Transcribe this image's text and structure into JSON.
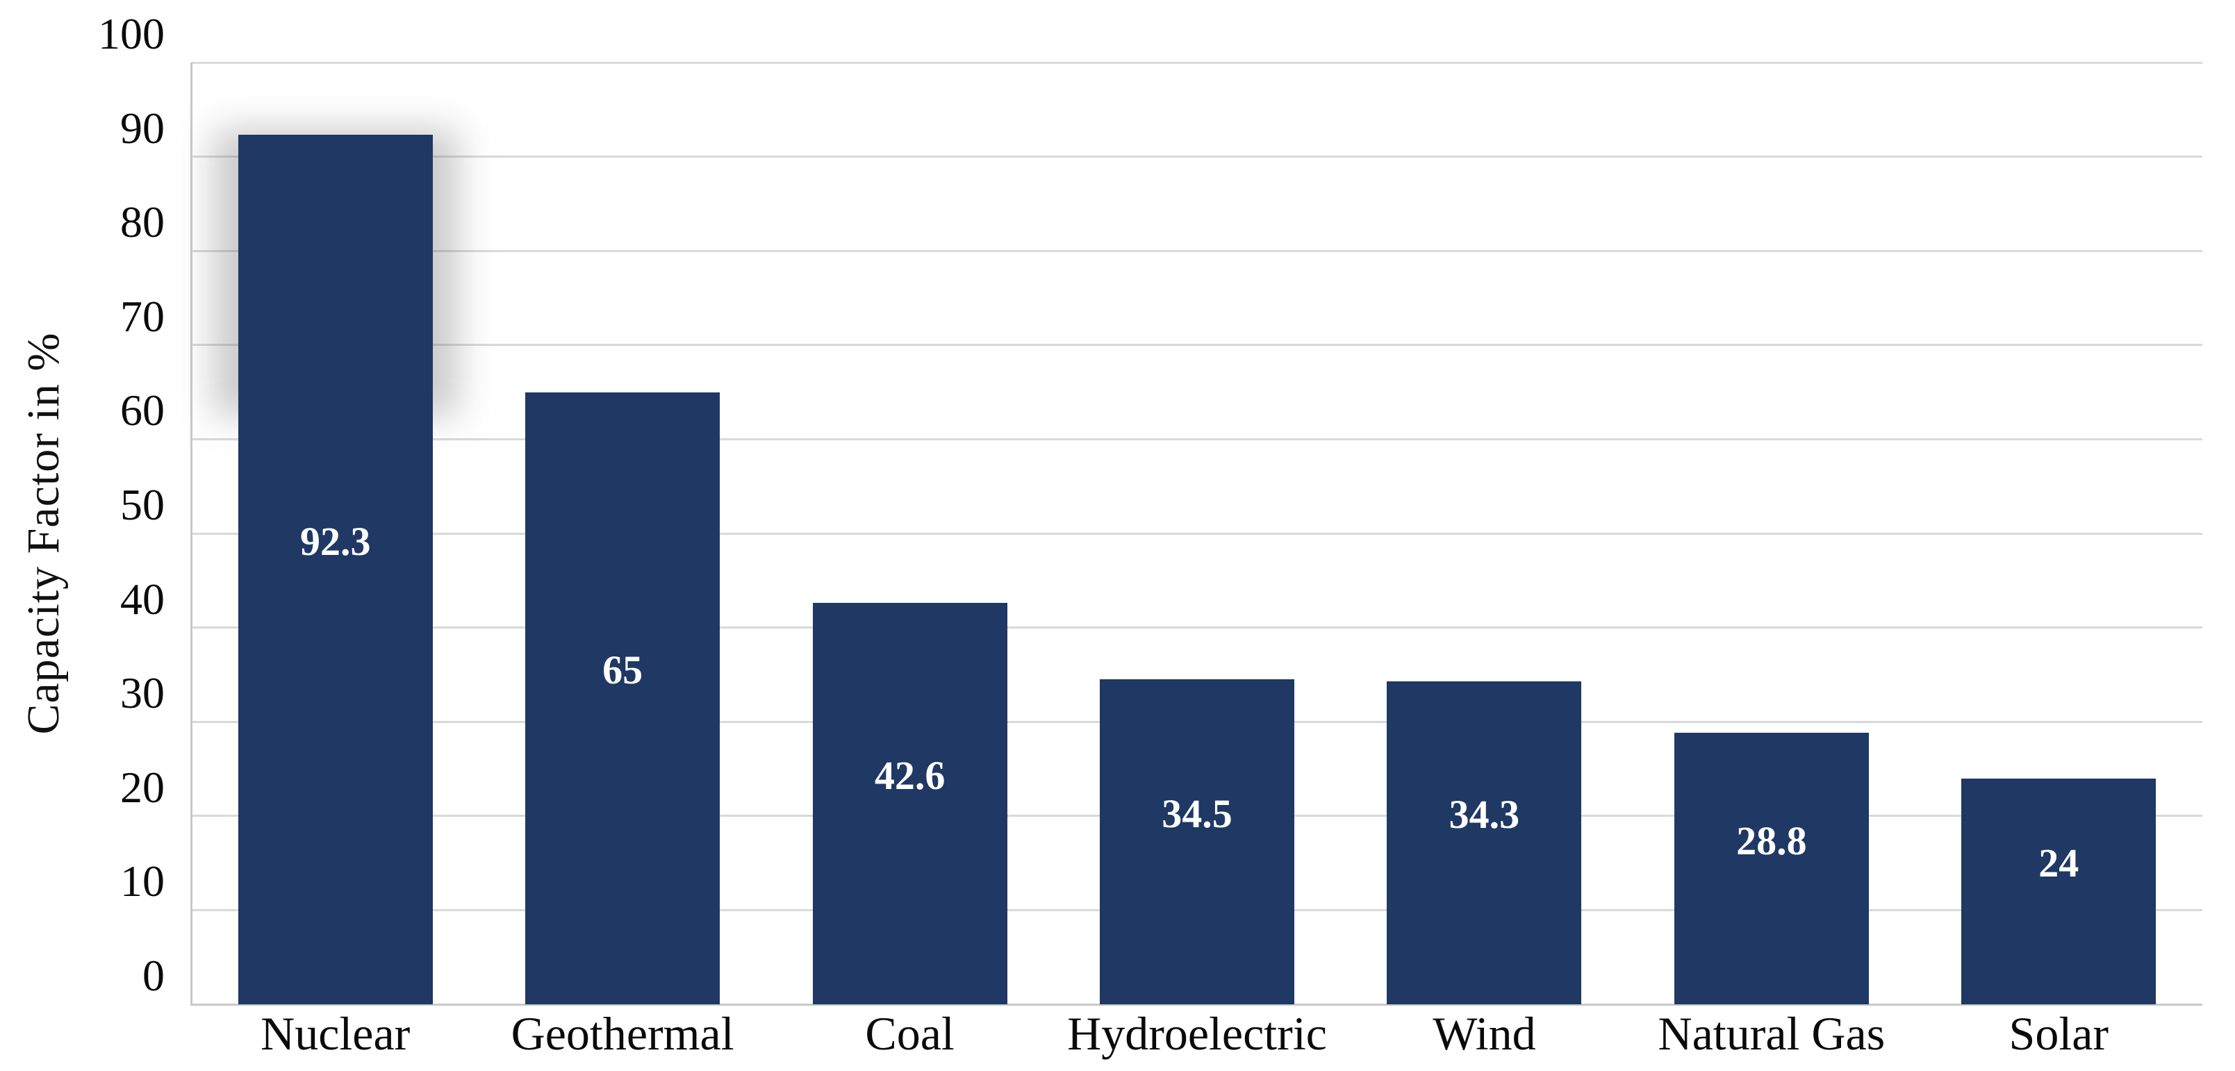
{
  "page": {
    "background": "#ffffff"
  },
  "chart_data": {
    "type": "bar",
    "title": "",
    "categories": [
      "Nuclear",
      "Geothermal",
      "Coal",
      "Hydroelectric",
      "Wind",
      "Natural Gas",
      "Solar"
    ],
    "values": [
      92.3,
      65,
      42.6,
      34.5,
      34.3,
      28.8,
      24
    ],
    "data_labels": [
      "92.3",
      "65",
      "42.6",
      "34.5",
      "34.3",
      "28.8",
      "24"
    ],
    "xlabel": "",
    "ylabel": "Capacity Factor in %",
    "ylim": [
      0,
      100
    ],
    "ytick_interval": 10,
    "ytick_labels": [
      "0",
      "10",
      "20",
      "30",
      "40",
      "50",
      "60",
      "70",
      "80",
      "90",
      "100"
    ],
    "grid": "horizontal",
    "legend": "none",
    "bar_label_position": "inside-center",
    "shadow_artifact_category": "Nuclear",
    "colors": {
      "bar": "#1f3864",
      "data_label": "#ffffff",
      "gridline": "#d9d9d9",
      "axis_line": "#c9c9c9",
      "text": "#0a0a0a",
      "background": "#ffffff"
    }
  }
}
